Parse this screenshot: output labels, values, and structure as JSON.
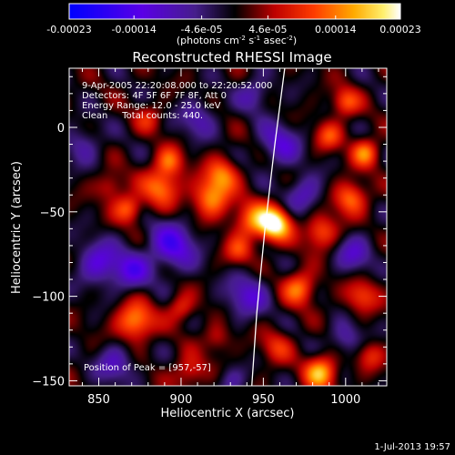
{
  "colorbar": {
    "tick_labels": [
      "-0.00023",
      "-0.00014",
      "-4.6e-05",
      "4.6e-05",
      "0.00014",
      "0.00023"
    ],
    "tick_values": [
      -0.00023,
      -0.00014,
      -4.6e-05,
      4.6e-05,
      0.00014,
      0.00023
    ],
    "range": [
      -0.00023,
      0.00023
    ],
    "units_main": "(photons cm",
    "units_exp1": "-2",
    "units_mid": " s",
    "units_exp2": "-1",
    "units_end": " asec",
    "units_exp3": "-2",
    "units_close": ")"
  },
  "chart_data": {
    "type": "heatmap",
    "title": "Reconstructed RHESSI Image",
    "xlabel": "Heliocentric X (arcsec)",
    "ylabel": "Heliocentric Y (arcsec)",
    "xlim": [
      832,
      1025
    ],
    "ylim": [
      -153,
      35
    ],
    "xticks": [
      850,
      900,
      950,
      1000
    ],
    "yticks": [
      0,
      -50,
      -100,
      -150
    ],
    "xtick_labels": [
      "850",
      "900",
      "950",
      "1000"
    ],
    "ytick_labels": [
      "0",
      "−50",
      "−100",
      "−150"
    ],
    "info_lines": [
      "9-Apr-2005 22:20:08.000 to 22:20:52.000",
      "Detectors: 4F 5F 6F 7F 8F, Att 0",
      "Energy Range: 12.0 - 25.0 keV",
      "Clean     Total counts: 440."
    ],
    "peak_label": "Position of Peak = [957,-57]",
    "peak": [
      957,
      -57
    ],
    "limb": [
      [
        963,
        35
      ],
      [
        957,
        -10
      ],
      [
        951,
        -60
      ],
      [
        946,
        -110
      ],
      [
        943,
        -153
      ]
    ],
    "sources": [
      {
        "x": 957,
        "y": -57,
        "amp": 1.0,
        "s": 7
      },
      {
        "x": 943,
        "y": -55,
        "amp": 0.55,
        "s": 8
      },
      {
        "x": 918,
        "y": -42,
        "amp": 0.65,
        "s": 8
      },
      {
        "x": 925,
        "y": -28,
        "amp": 0.55,
        "s": 7
      },
      {
        "x": 888,
        "y": -35,
        "amp": 0.6,
        "s": 8
      },
      {
        "x": 868,
        "y": -48,
        "amp": 0.55,
        "s": 6
      },
      {
        "x": 872,
        "y": -115,
        "amp": 0.7,
        "s": 8
      },
      {
        "x": 900,
        "y": -107,
        "amp": 0.4,
        "s": 6
      },
      {
        "x": 893,
        "y": -20,
        "amp": 0.5,
        "s": 6
      },
      {
        "x": 857,
        "y": -35,
        "amp": 0.35,
        "s": 6
      },
      {
        "x": 935,
        "y": -73,
        "amp": 0.4,
        "s": 6
      },
      {
        "x": 972,
        "y": -95,
        "amp": 0.6,
        "s": 7
      },
      {
        "x": 985,
        "y": -62,
        "amp": 0.55,
        "s": 7
      },
      {
        "x": 1003,
        "y": -42,
        "amp": 0.6,
        "s": 7
      },
      {
        "x": 1012,
        "y": -15,
        "amp": 0.6,
        "s": 6
      },
      {
        "x": 1000,
        "y": 15,
        "amp": 0.5,
        "s": 6
      },
      {
        "x": 990,
        "y": -5,
        "amp": 0.45,
        "s": 6
      },
      {
        "x": 1010,
        "y": -100,
        "amp": 0.45,
        "s": 7
      },
      {
        "x": 985,
        "y": -145,
        "amp": 0.75,
        "s": 7
      },
      {
        "x": 905,
        "y": -145,
        "amp": 0.4,
        "s": 7
      },
      {
        "x": 958,
        "y": -130,
        "amp": 0.35,
        "s": 7
      },
      {
        "x": 922,
        "y": -125,
        "amp": 0.3,
        "s": 6
      },
      {
        "x": 1015,
        "y": -135,
        "amp": 0.35,
        "s": 6
      },
      {
        "x": 880,
        "y": 5,
        "amp": 0.3,
        "s": 6
      },
      {
        "x": 850,
        "y": -80,
        "amp": -0.5,
        "s": 9
      },
      {
        "x": 895,
        "y": -70,
        "amp": -0.6,
        "s": 10
      },
      {
        "x": 870,
        "y": -85,
        "amp": -0.5,
        "s": 8
      },
      {
        "x": 940,
        "y": -100,
        "amp": -0.45,
        "s": 9
      },
      {
        "x": 960,
        "y": -10,
        "amp": -0.45,
        "s": 9
      },
      {
        "x": 975,
        "y": -40,
        "amp": -0.4,
        "s": 8
      },
      {
        "x": 860,
        "y": -140,
        "amp": -0.4,
        "s": 8
      },
      {
        "x": 1005,
        "y": -75,
        "amp": -0.4,
        "s": 8
      },
      {
        "x": 910,
        "y": 5,
        "amp": -0.35,
        "s": 8
      },
      {
        "x": 945,
        "y": 20,
        "amp": -0.35,
        "s": 7
      },
      {
        "x": 1000,
        "y": -125,
        "amp": -0.35,
        "s": 7
      },
      {
        "x": 930,
        "y": -150,
        "amp": -0.3,
        "s": 6
      },
      {
        "x": 840,
        "y": -10,
        "amp": -0.3,
        "s": 8
      }
    ]
  },
  "timestamp": "1-Jul-2013 19:57"
}
